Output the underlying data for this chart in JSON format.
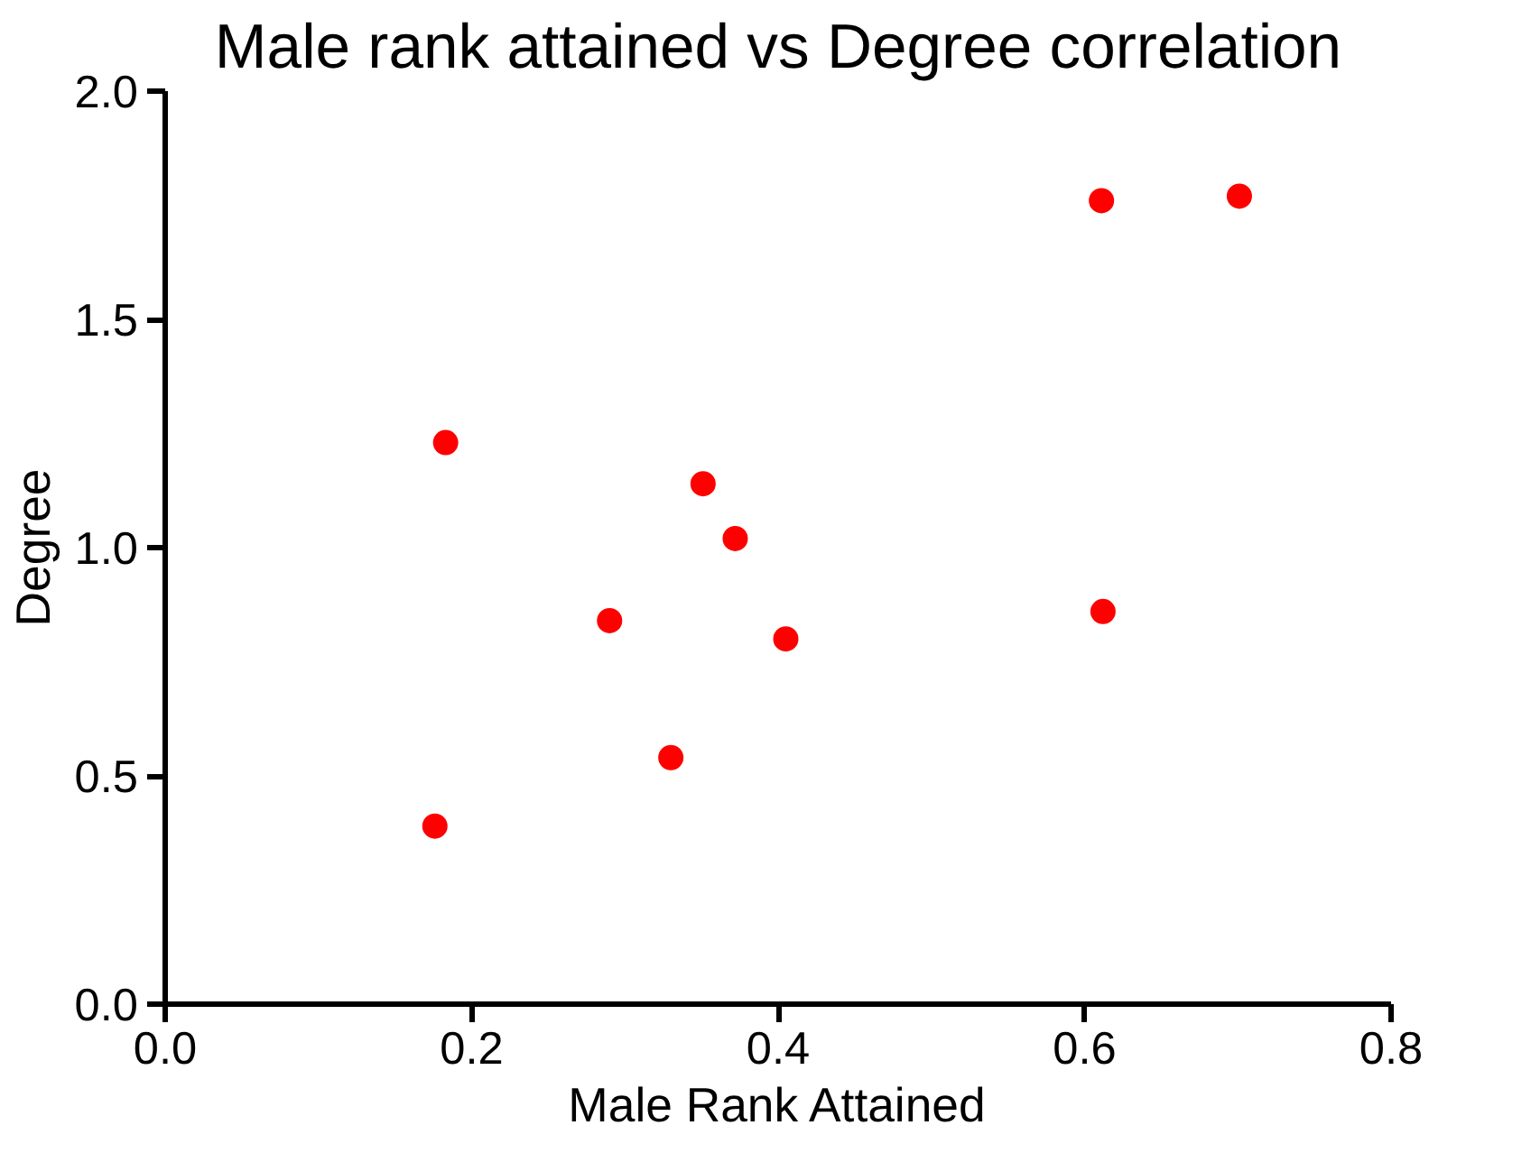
{
  "chart_data": {
    "type": "scatter",
    "title": "Male rank attained vs Degree correlation",
    "xlabel": "Male Rank Attained",
    "ylabel": "Degree",
    "x": [
      0.183,
      0.176,
      0.29,
      0.33,
      0.351,
      0.372,
      0.405,
      0.611,
      0.612,
      0.701
    ],
    "series": [
      {
        "color": "#ff0000",
        "values": [
          1.23,
          0.39,
          0.84,
          0.54,
          1.14,
          1.02,
          0.8,
          1.76,
          0.86,
          1.77
        ]
      }
    ],
    "xlim": [
      0,
      0.8
    ],
    "xticks": [
      "0.0",
      0.2,
      0.4,
      0.6,
      0.8
    ],
    "ylim": [
      0,
      2.0
    ],
    "yticks": [
      "0.0",
      0.5,
      "1.0",
      1.5,
      "2.0"
    ],
    "marker": "circle"
  }
}
